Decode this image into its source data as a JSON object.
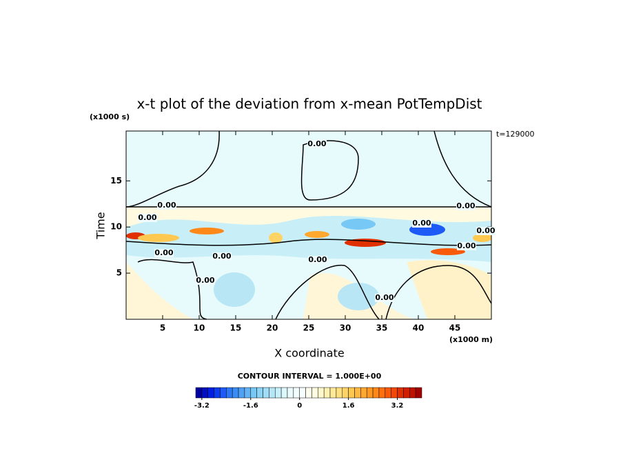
{
  "chart_data": {
    "type": "contour",
    "title": "x-t plot of the deviation from x-mean PotTempDist",
    "xlabel": "X coordinate",
    "ylabel": "Time",
    "x_unit": "(x1000 m)",
    "y_unit": "(x1000 s)",
    "annotation": "t=129000",
    "xlim": [
      0,
      50
    ],
    "ylim": [
      0,
      20.4
    ],
    "xticks": [
      5,
      10,
      15,
      20,
      25,
      30,
      35,
      40,
      45
    ],
    "yticks": [
      5,
      10,
      15
    ],
    "contour_labels": [
      {
        "value": 0,
        "label": "0.00"
      },
      {
        "value": 0,
        "label": "0.00"
      },
      {
        "value": 0,
        "label": "0.00"
      },
      {
        "value": 0,
        "label": "0.00"
      },
      {
        "value": 0,
        "label": "0.00"
      },
      {
        "value": 0,
        "label": "0.00"
      },
      {
        "value": 0,
        "label": "0.00"
      },
      {
        "value": 0,
        "label": "0.00"
      },
      {
        "value": 0,
        "label": "0.00"
      },
      {
        "value": 0,
        "label": "0.00"
      },
      {
        "value": 0,
        "label": "0.00"
      },
      {
        "value": 0,
        "label": "0.00"
      }
    ],
    "contour_interval_text": "CONTOUR INTERVAL = 1.000E+00",
    "colorbar": {
      "lim": [
        -3.4,
        4.0
      ],
      "ticks": [
        -3.2,
        -1.6,
        0,
        1.6,
        3.2
      ],
      "colors": [
        "#0000a0",
        "#0010c0",
        "#0020e0",
        "#0a3cf0",
        "#1e5af5",
        "#2d78f5",
        "#3c8cf5",
        "#50a0f5",
        "#64b4f5",
        "#78c8f5",
        "#8cd2f5",
        "#a0dcf5",
        "#b4e6f8",
        "#c8f0fa",
        "#dcf8fc",
        "#eafcfd",
        "#f2fefe",
        "#f8ffff",
        "#fffff0",
        "#fffce0",
        "#fff8cc",
        "#fff2b0",
        "#ffea98",
        "#ffe080",
        "#ffd466",
        "#ffc850",
        "#ffb840",
        "#ffa830",
        "#ff9820",
        "#ff8818",
        "#ff7010",
        "#f85a0a",
        "#f04808",
        "#e03000",
        "#d02000",
        "#c01000",
        "#a00000"
      ]
    }
  }
}
